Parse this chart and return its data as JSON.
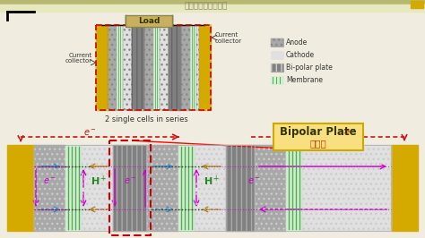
{
  "bg_color": "#f0ede0",
  "top_bar_color_dark": "#b8b870",
  "top_bar_color_light": "#e8e8c0",
  "load_label": "Load",
  "current_collector_label_right": "Current\ncollector",
  "current_collector_label_left": "Current\ncollector",
  "two_cells_label": "2 single cells in series",
  "bipolar_plate_label": "Bipolar Plate",
  "bipolar_plate_sublabel": "雙極板",
  "legend_anode": "Anode",
  "legend_cathode": "Cathode",
  "legend_bipolar": "Bi-polar plate",
  "legend_membrane": "Membrane",
  "anode_color": "#a8a8a8",
  "cathode_color": "#e0e0e0",
  "bipolar_color": "#808080",
  "membrane_color": "#d0f0d0",
  "current_collector_color": "#d4aa00",
  "load_box_color": "#c8b060",
  "bipolar_label_bg": "#f8e080",
  "electron_color": "#cc1111",
  "hplus_color": "#228822",
  "magenta_color": "#cc00cc",
  "blue_color": "#3388cc",
  "dark_yellow_color": "#aa8800",
  "dark_green_color": "#006600"
}
